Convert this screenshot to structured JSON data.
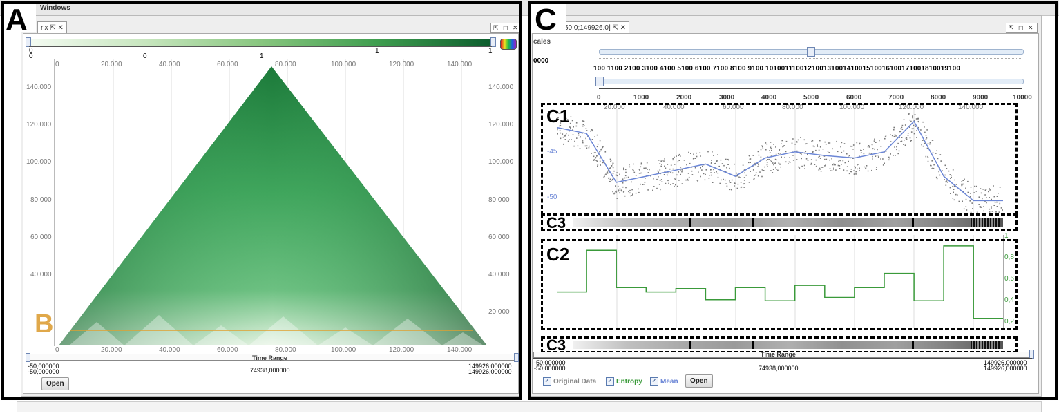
{
  "menu": {
    "windows": "Windows"
  },
  "panelA": {
    "label": "A",
    "tab_title": "rix",
    "tab_icons": "⇱ ✕",
    "win_controls": "⇱ ◻ ✕",
    "colorbar_ticks": [
      "0",
      "0",
      "0",
      "1",
      "1",
      "1"
    ],
    "x_ticks": [
      "0",
      "20.000",
      "40.000",
      "60.000",
      "80.000",
      "100.000",
      "120.000",
      "140.000"
    ],
    "y_ticks": [
      "140.000",
      "120.000",
      "100.000",
      "80.000",
      "60.000",
      "40.000",
      "20.000"
    ],
    "b_label": "B",
    "time_range_label": "Time Range",
    "time_left_1": "-50,000000",
    "time_left_2": "-50,000000",
    "time_mid": "74938,000000",
    "time_right_1": "149926,000000",
    "time_right_2": "149926,000000",
    "open_button": "Open"
  },
  "panelC": {
    "label": "C",
    "tab_title": "50.0;149926.0]",
    "tab_icons": "⇱ ✕",
    "win_controls": "⇱ ◻ ✕",
    "scales_label": "cales",
    "scales_value": "0000",
    "scale_ticks": "100 1100 2100 3100 4100 5100 6100 7100 8100 9100 10100111001210013100141001510016100171001810019100",
    "window_ticks": [
      "0",
      "1000",
      "2000",
      "3000",
      "4000",
      "5000",
      "6000",
      "7000",
      "8000",
      "9000",
      "10000"
    ],
    "c1_label": "C1",
    "c1_x_ticks": [
      "20.000",
      "40.000",
      "60.000",
      "80.000",
      "100.000",
      "120.000",
      "140.000"
    ],
    "c1_y_ticks": [
      "-45",
      "-50"
    ],
    "c3_label": "C3",
    "c2_label": "C2",
    "c2_y_ticks": [
      "1",
      "0,8",
      "0,6",
      "0,4",
      "0,2"
    ],
    "c3b_label": "C3",
    "time_range_label": "Time Range",
    "time_left_1": "-50,000000",
    "time_left_2": "-50,000000",
    "time_mid": "74938,000000",
    "time_right_1": "149926,000000",
    "time_right_2": "149926,000000",
    "cb_original": "Original Data",
    "cb_entropy": "Entropy",
    "cb_mean": "Mean",
    "open_button": "Open",
    "colors": {
      "entropy": "#3a9a3a",
      "mean": "#6b86d6",
      "original": "#777777"
    }
  },
  "chart_data": [
    {
      "type": "line",
      "title": "",
      "series": [
        {
          "name": "Mean",
          "x": [
            0,
            10000,
            20000,
            30000,
            40000,
            50000,
            60000,
            70000,
            80000,
            90000,
            100000,
            110000,
            120000,
            130000,
            140000,
            149926
          ],
          "values": [
            -44.5,
            -45.0,
            -49.0,
            -48.5,
            -48.0,
            -47.5,
            -48.5,
            -47.0,
            -46.5,
            -46.8,
            -47.0,
            -46.5,
            -44.0,
            -48.5,
            -50.5,
            -50.5
          ]
        }
      ],
      "y_ticks": [
        "-45",
        "-50"
      ]
    },
    {
      "type": "line",
      "title": "",
      "series": [
        {
          "name": "Entropy",
          "x": [
            0,
            10000,
            20000,
            30000,
            40000,
            50000,
            60000,
            70000,
            80000,
            90000,
            100000,
            110000,
            120000,
            130000,
            140000,
            149926
          ],
          "values": [
            0.5,
            0.88,
            0.54,
            0.5,
            0.53,
            0.43,
            0.54,
            0.42,
            0.56,
            0.45,
            0.54,
            0.67,
            0.42,
            0.92,
            0.26,
            0.26
          ]
        }
      ],
      "ylim": [
        0.2,
        1.0
      ]
    }
  ]
}
